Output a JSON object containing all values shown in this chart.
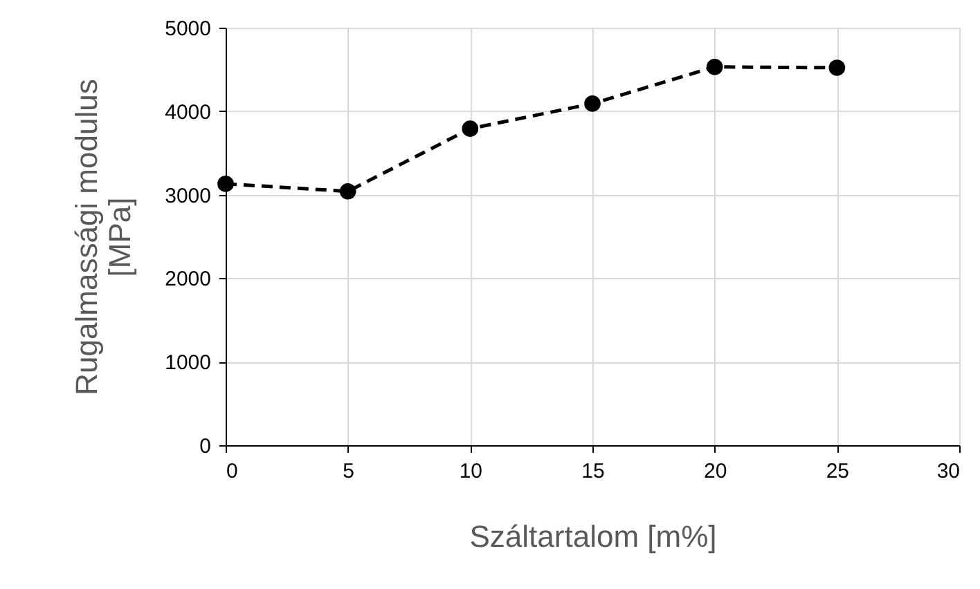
{
  "chart_data": {
    "type": "line",
    "xlabel": "Száltartalom [m%]",
    "ylabel": "Rugalmassági modulus\n[MPa]",
    "x": [
      0,
      5,
      10,
      15,
      20,
      25
    ],
    "series": [
      {
        "color": "#000000",
        "values": [
          3130,
          3040,
          3790,
          4090,
          4530,
          4520
        ]
      }
    ],
    "xlim": [
      0,
      30
    ],
    "xticks": [
      0,
      5,
      10,
      15,
      20,
      25,
      30
    ],
    "ylim": [
      0,
      5000
    ],
    "yticks": [
      0,
      1000,
      2000,
      3000,
      4000,
      5000
    ],
    "grid": true,
    "marker": "circle",
    "line_style": "dashed",
    "legend": false
  }
}
